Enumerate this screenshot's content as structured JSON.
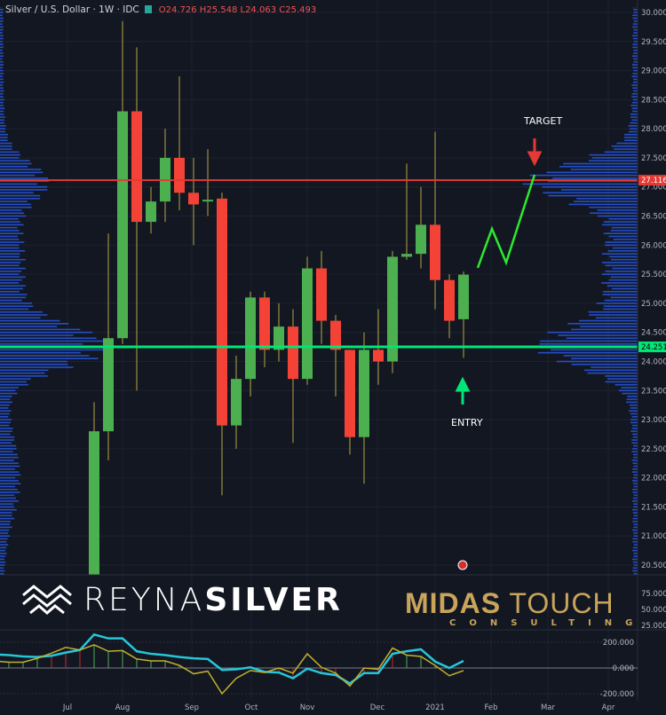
{
  "header": {
    "symbol": "Silver / U.S. Dollar · 1W · IDC",
    "ohlc": "O24.726 H25.548 L24.063 C25.493"
  },
  "colors": {
    "background": "#131722",
    "up": "#4caf50",
    "down": "#f44336",
    "wick": "#b5a642",
    "target_line": "#e53935",
    "entry_line": "#00e676",
    "projection": "#2ee82e",
    "profile": "#2962ff",
    "osc_fast": "#26c6da",
    "osc_slow": "#c0b02c"
  },
  "annotations": {
    "target": "TARGET",
    "entry": "ENTRY"
  },
  "logos": {
    "reyna_1": "REYNA",
    "reyna_2": "SILVER",
    "midas_1": "MIDAS",
    "midas_2": "TOUCH",
    "midas_3": "CONSULTING"
  },
  "chart_data": [
    {
      "type": "candlestick",
      "title": "Silver / U.S. Dollar · 1W · IDC",
      "ylim": [
        20.5,
        30.0
      ],
      "y_ticks": [
        "30.000",
        "29.500",
        "29.000",
        "28.500",
        "28.000",
        "27.500",
        "27.000",
        "26.500",
        "26.000",
        "25.500",
        "25.000",
        "24.500",
        "24.000",
        "23.500",
        "23.000",
        "22.500",
        "22.000",
        "21.500",
        "21.000",
        "20.500"
      ],
      "x_ticks": [
        "Jul",
        "Aug",
        "Sep",
        "Oct",
        "Nov",
        "Dec",
        "2021",
        "Feb",
        "Mar",
        "Apr"
      ],
      "candles": [
        {
          "date": "2020-07-20",
          "o": 19.9,
          "h": 23.3,
          "l": 19.5,
          "c": 22.8
        },
        {
          "date": "2020-07-27",
          "o": 22.8,
          "h": 26.2,
          "l": 22.3,
          "c": 24.4
        },
        {
          "date": "2020-08-03",
          "o": 24.4,
          "h": 29.85,
          "l": 24.3,
          "c": 28.3
        },
        {
          "date": "2020-08-10",
          "o": 28.3,
          "h": 29.4,
          "l": 23.5,
          "c": 26.4
        },
        {
          "date": "2020-08-17",
          "o": 26.4,
          "h": 27.0,
          "l": 26.2,
          "c": 26.75
        },
        {
          "date": "2020-08-24",
          "o": 26.75,
          "h": 28.0,
          "l": 26.4,
          "c": 27.5
        },
        {
          "date": "2020-08-31",
          "o": 27.5,
          "h": 28.9,
          "l": 26.6,
          "c": 26.9
        },
        {
          "date": "2020-09-07",
          "o": 26.9,
          "h": 27.5,
          "l": 26.0,
          "c": 26.7
        },
        {
          "date": "2020-09-14",
          "o": 26.75,
          "h": 27.65,
          "l": 26.5,
          "c": 26.78
        },
        {
          "date": "2020-09-21",
          "o": 26.8,
          "h": 26.9,
          "l": 21.7,
          "c": 22.9
        },
        {
          "date": "2020-09-28",
          "o": 22.9,
          "h": 24.1,
          "l": 22.5,
          "c": 23.7
        },
        {
          "date": "2020-10-05",
          "o": 23.7,
          "h": 25.2,
          "l": 23.4,
          "c": 25.1
        },
        {
          "date": "2020-10-12",
          "o": 25.1,
          "h": 25.2,
          "l": 23.9,
          "c": 24.2
        },
        {
          "date": "2020-10-19",
          "o": 24.2,
          "h": 25.0,
          "l": 24.0,
          "c": 24.6
        },
        {
          "date": "2020-10-26",
          "o": 24.6,
          "h": 24.9,
          "l": 22.6,
          "c": 23.7
        },
        {
          "date": "2020-11-02",
          "o": 23.7,
          "h": 25.8,
          "l": 23.6,
          "c": 25.6
        },
        {
          "date": "2020-11-09",
          "o": 25.6,
          "h": 25.9,
          "l": 24.3,
          "c": 24.7
        },
        {
          "date": "2020-11-16",
          "o": 24.7,
          "h": 24.8,
          "l": 23.4,
          "c": 24.2
        },
        {
          "date": "2020-11-23",
          "o": 24.2,
          "h": 24.2,
          "l": 22.4,
          "c": 22.7
        },
        {
          "date": "2020-11-30",
          "o": 22.7,
          "h": 24.5,
          "l": 21.9,
          "c": 24.2
        },
        {
          "date": "2020-12-07",
          "o": 24.2,
          "h": 24.9,
          "l": 23.6,
          "c": 24.0
        },
        {
          "date": "2020-12-14",
          "o": 24.0,
          "h": 25.9,
          "l": 23.8,
          "c": 25.8
        },
        {
          "date": "2020-12-21",
          "o": 25.8,
          "h": 27.4,
          "l": 25.75,
          "c": 25.85
        },
        {
          "date": "2020-12-28",
          "o": 25.85,
          "h": 27.0,
          "l": 25.6,
          "c": 26.35
        },
        {
          "date": "2021-01-04",
          "o": 26.35,
          "h": 27.95,
          "l": 24.9,
          "c": 25.4
        },
        {
          "date": "2021-01-11",
          "o": 25.4,
          "h": 25.5,
          "l": 24.4,
          "c": 24.7
        },
        {
          "date": "2021-01-18",
          "o": 24.726,
          "h": 25.548,
          "l": 24.063,
          "c": 25.493
        }
      ],
      "horizontal_lines": [
        {
          "label": "27.116",
          "value": 27.116,
          "color": "#e53935"
        },
        {
          "label": "24.251",
          "value": 24.251,
          "color": "#00e676"
        }
      ],
      "projection_path": [
        {
          "date": "2021-01-25",
          "price": 25.61
        },
        {
          "date": "2021-02-01",
          "price": 26.28
        },
        {
          "date": "2021-02-08",
          "price": 25.7
        },
        {
          "date": "2021-02-22",
          "price": 27.21
        }
      ],
      "volume_profile": "both sides, peaks near 27.1 and 24.25"
    },
    {
      "type": "line",
      "panel": "middle",
      "y_ticks": [
        "75.000",
        "50.000",
        "25.000"
      ]
    },
    {
      "type": "line",
      "panel": "oscillator",
      "y_ticks": [
        "200.000",
        "0.000",
        "-200.000"
      ],
      "ylim": [
        -250,
        280
      ],
      "dates_start": "2020-06-01",
      "interval": "1W",
      "series": [
        {
          "color": "#26c6da",
          "values": [
            105,
            100,
            90,
            85,
            95,
            120,
            140,
            260,
            230,
            230,
            130,
            110,
            100,
            85,
            75,
            70,
            -15,
            -10,
            5,
            -30,
            -35,
            -80,
            -5,
            -40,
            -55,
            -120,
            -40,
            -40,
            110,
            130,
            145,
            50,
            0,
            55
          ]
        },
        {
          "color": "#c0b02c",
          "values": [
            55,
            45,
            45,
            75,
            115,
            160,
            140,
            180,
            130,
            135,
            70,
            55,
            55,
            20,
            -45,
            -25,
            -200,
            -80,
            -20,
            -35,
            0,
            -40,
            110,
            5,
            -40,
            -140,
            0,
            -10,
            155,
            100,
            90,
            20,
            -60,
            -20
          ]
        }
      ]
    }
  ]
}
